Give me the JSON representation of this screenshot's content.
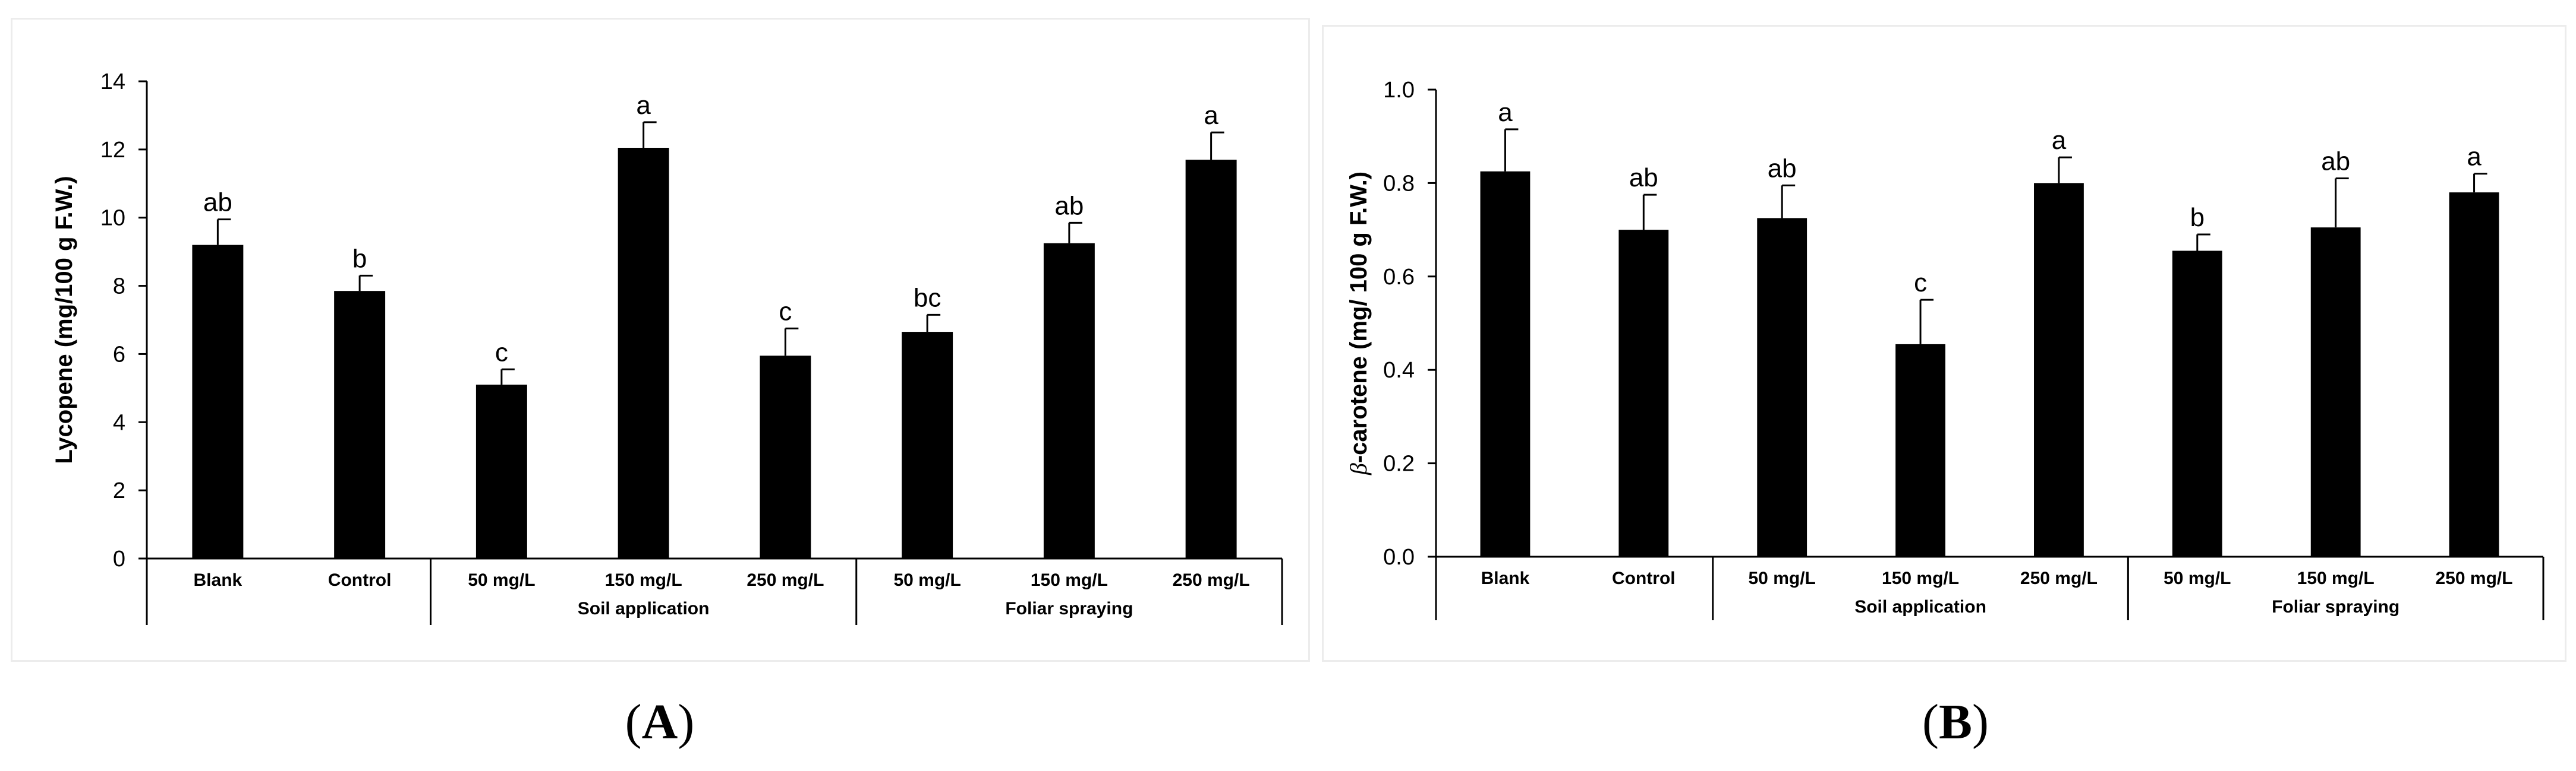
{
  "panel_labels": {
    "a": "A",
    "b": "B"
  },
  "chart_data": [
    {
      "type": "bar",
      "ylabel": "Lycopene (mg/100 g F.W.)",
      "ylim": [
        0,
        14
      ],
      "yticks": [
        "0",
        "2",
        "4",
        "6",
        "8",
        "10",
        "12",
        "14"
      ],
      "categories": [
        "Blank",
        "Control",
        "50 mg/L",
        "150 mg/L",
        "250 mg/L",
        "50 mg/L",
        "150 mg/L",
        "250 mg/L"
      ],
      "groups": [
        {
          "label": "",
          "span": [
            0,
            1
          ]
        },
        {
          "label": "Soil application",
          "span": [
            2,
            4
          ]
        },
        {
          "label": "Foliar spraying",
          "span": [
            5,
            7
          ]
        }
      ],
      "values": [
        9.2,
        7.85,
        5.1,
        12.05,
        5.95,
        6.65,
        9.25,
        11.7
      ],
      "errors": [
        0.75,
        0.45,
        0.45,
        0.75,
        0.8,
        0.5,
        0.6,
        0.8
      ],
      "letters": [
        "ab",
        "b",
        "c",
        "a",
        "c",
        "bc",
        "ab",
        "a"
      ],
      "bar_color": "#000000",
      "grid": false
    },
    {
      "type": "bar",
      "ylabel_prefix": "β",
      "ylabel": "-carotene (mg/ 100 g F.W.)",
      "ylim": [
        0,
        1.0
      ],
      "yticks": [
        "0.0",
        "0.2",
        "0.4",
        "0.6",
        "0.8",
        "1.0"
      ],
      "categories": [
        "Blank",
        "Control",
        "50 mg/L",
        "150 mg/L",
        "250 mg/L",
        "50 mg/L",
        "150 mg/L",
        "250 mg/L"
      ],
      "groups": [
        {
          "label": "",
          "span": [
            0,
            1
          ]
        },
        {
          "label": "Soil application",
          "span": [
            2,
            4
          ]
        },
        {
          "label": "Foliar spraying",
          "span": [
            5,
            7
          ]
        }
      ],
      "values": [
        0.825,
        0.7,
        0.725,
        0.455,
        0.8,
        0.655,
        0.705,
        0.78
      ],
      "errors": [
        0.09,
        0.075,
        0.07,
        0.095,
        0.055,
        0.035,
        0.105,
        0.04
      ],
      "letters": [
        "a",
        "ab",
        "ab",
        "c",
        "a",
        "b",
        "ab",
        "a"
      ],
      "bar_color": "#000000",
      "grid": false
    }
  ]
}
